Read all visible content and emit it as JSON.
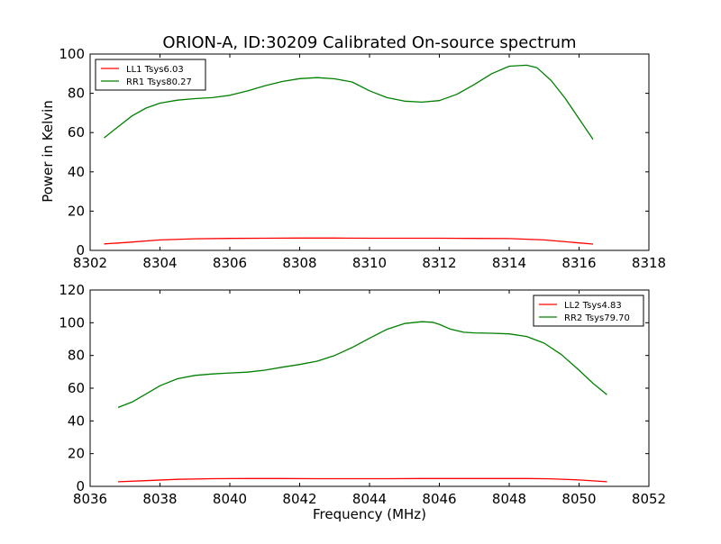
{
  "figure": {
    "title": "ORION-A, ID:30209 Calibrated On-source spectrum",
    "ylabel": "Power in Kelvin",
    "xlabel": "Frequency (MHz)"
  },
  "chart_data": [
    {
      "type": "line",
      "title": "ORION-A, ID:30209 Calibrated On-source spectrum",
      "xlabel": "",
      "ylabel": "Power in Kelvin",
      "xlim": [
        8302,
        8318
      ],
      "ylim": [
        0,
        100
      ],
      "xticks": [
        8302,
        8304,
        8306,
        8308,
        8310,
        8312,
        8314,
        8316,
        8318
      ],
      "yticks": [
        0,
        20,
        40,
        60,
        80,
        100
      ],
      "grid": false,
      "legend_position": "top-left",
      "series": [
        {
          "name": "LL1 Tsys6.03",
          "color": "#ff0000",
          "x": [
            8302.4,
            8303,
            8304,
            8305,
            8306,
            8307,
            8308,
            8309,
            8310,
            8311,
            8312,
            8313,
            8314,
            8315,
            8316,
            8316.4
          ],
          "y": [
            3.3,
            4.0,
            5.3,
            5.9,
            6.1,
            6.2,
            6.3,
            6.3,
            6.2,
            6.2,
            6.2,
            6.1,
            6.0,
            5.3,
            3.8,
            3.2
          ]
        },
        {
          "name": "RR1 Tsys80.27",
          "color": "#008000",
          "x": [
            8302.4,
            8302.8,
            8303.2,
            8303.6,
            8304,
            8304.5,
            8305,
            8305.5,
            8306,
            8306.5,
            8307,
            8307.5,
            8308,
            8308.5,
            8309,
            8309.5,
            8310,
            8310.5,
            8311,
            8311.5,
            8312,
            8312.5,
            8313,
            8313.5,
            8314,
            8314.5,
            8314.8,
            8315.2,
            8315.6,
            8316,
            8316.4
          ],
          "y": [
            57.3,
            63.0,
            68.5,
            72.5,
            75.0,
            76.5,
            77.3,
            77.8,
            79.0,
            81.2,
            83.8,
            86.0,
            87.5,
            88.0,
            87.4,
            85.8,
            81.3,
            77.8,
            76.0,
            75.5,
            76.3,
            79.5,
            84.5,
            90.0,
            93.8,
            94.3,
            93.0,
            86.5,
            77.5,
            67.0,
            56.5
          ]
        }
      ]
    },
    {
      "type": "line",
      "title": "",
      "xlabel": "Frequency (MHz)",
      "ylabel": "",
      "xlim": [
        8036,
        8052
      ],
      "ylim": [
        0,
        120
      ],
      "xticks": [
        8036,
        8038,
        8040,
        8042,
        8044,
        8046,
        8048,
        8050,
        8052
      ],
      "yticks": [
        0,
        20,
        40,
        60,
        80,
        100,
        120
      ],
      "grid": false,
      "legend_position": "top-right",
      "series": [
        {
          "name": "LL2 Tsys4.83",
          "color": "#ff0000",
          "x": [
            8036.8,
            8037.5,
            8038.5,
            8039.5,
            8040.5,
            8041.5,
            8042.5,
            8043.5,
            8044.5,
            8045.5,
            8046.5,
            8047.5,
            8048.5,
            8049.2,
            8050,
            8050.8
          ],
          "y": [
            2.8,
            3.4,
            4.3,
            4.7,
            4.8,
            4.8,
            4.7,
            4.7,
            4.7,
            4.8,
            4.8,
            4.8,
            4.8,
            4.6,
            3.9,
            2.8
          ]
        },
        {
          "name": "RR2 Tsys79.70",
          "color": "#008000",
          "x": [
            8036.8,
            8037.2,
            8037.6,
            8038,
            8038.5,
            8039,
            8039.5,
            8040,
            8040.5,
            8041,
            8041.5,
            8042,
            8042.5,
            8043,
            8043.5,
            8044,
            8044.5,
            8045,
            8045.5,
            8045.8,
            8046,
            8046.3,
            8046.7,
            8047,
            8047.5,
            8048,
            8048.5,
            8049,
            8049.5,
            8050,
            8050.4,
            8050.8
          ],
          "y": [
            48.2,
            51.5,
            56.5,
            61.5,
            65.8,
            67.8,
            68.7,
            69.3,
            69.8,
            71.0,
            72.8,
            74.5,
            76.5,
            80.0,
            84.8,
            90.5,
            96.0,
            99.5,
            100.6,
            100.3,
            99.0,
            96.2,
            94.2,
            93.8,
            93.6,
            93.2,
            91.6,
            87.5,
            80.5,
            71.0,
            63.0,
            56.0
          ]
        }
      ]
    }
  ]
}
